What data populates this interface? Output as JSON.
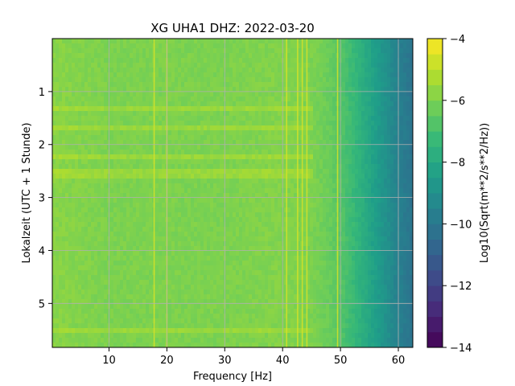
{
  "chart_data": {
    "type": "heatmap",
    "title": "XG UHA1  DHZ: 2022-03-20",
    "xlabel": "Frequency [Hz]",
    "ylabel": "Lokalzeit (UTC + 1 Stunde)",
    "xlim": [
      0.2,
      62.5
    ],
    "ylim": [
      5.83,
      0.0
    ],
    "xticks": [
      "10",
      "20",
      "30",
      "40",
      "50",
      "60"
    ],
    "yticks": [
      "1",
      "2",
      "3",
      "4",
      "5"
    ],
    "grid": true,
    "colorbar": {
      "label": "Log10(Sqrt(m**2/s**2/Hz))",
      "range": [
        -14,
        -4
      ],
      "ticks": [
        "−14",
        "−12",
        "−10",
        "−8",
        "−6",
        "−4"
      ],
      "colormap": "viridis",
      "levels": 20
    },
    "value_profile": {
      "frequency_hz": [
        0,
        10,
        20,
        30,
        40,
        45,
        48,
        50,
        52,
        54,
        56,
        58,
        60,
        62.5
      ],
      "log10_asd": [
        -5.8,
        -6.0,
        -6.0,
        -6.0,
        -5.9,
        -6.0,
        -6.3,
        -6.7,
        -7.2,
        -7.8,
        -8.4,
        -9.0,
        -9.6,
        -10.2
      ]
    },
    "spectral_lines_hz": [
      17.8,
      20.0,
      40.7,
      42.6,
      43.4,
      44.2,
      49.5
    ],
    "time_striations_hours": [
      1.3,
      1.68,
      2.25,
      2.55,
      5.55
    ]
  }
}
